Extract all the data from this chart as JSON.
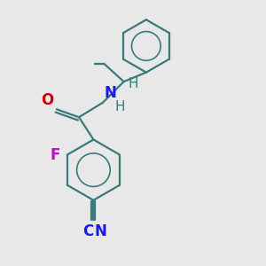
{
  "bg_color": "#e8e8e8",
  "bond_color": "#3a7a7a",
  "bond_width": 1.6,
  "O_color": "#cc0000",
  "N_color": "#1a1aee",
  "F_color": "#cc00cc",
  "C_color": "#1a1aee",
  "H_color": "#3a7a7a",
  "font_size": 12,
  "fig_w": 3.0,
  "fig_h": 3.0,
  "dpi": 100,
  "xlim": [
    0,
    10
  ],
  "ylim": [
    0,
    10
  ]
}
